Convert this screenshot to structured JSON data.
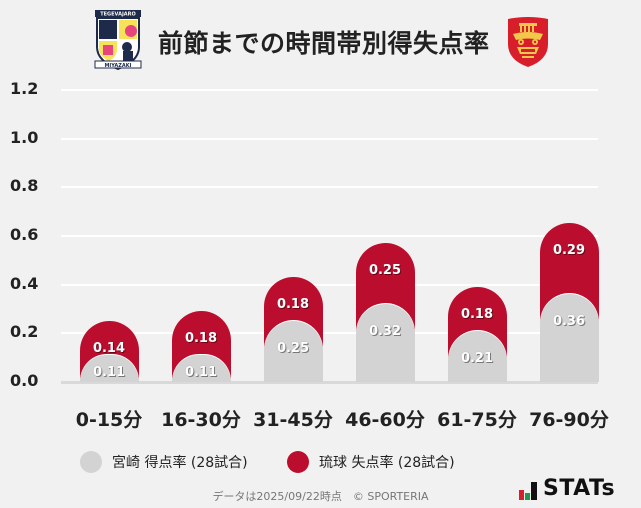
{
  "header": {
    "title": "前節までの時間帯別得失点率",
    "left_logo": "miyazaki-crest-icon",
    "right_logo": "ryukyu-shisa-crest-icon",
    "left_logo_text_top": "TEGEVAJARO",
    "left_logo_text_bottom": "MIYAZAKI"
  },
  "colors": {
    "background": "#f1f1f1",
    "miyazaki": "#d3d3d3",
    "ryukyu": "#bb0e2f",
    "grid": "#ffffff"
  },
  "chart_data": {
    "type": "bar",
    "stacked": true,
    "title": "前節までの時間帯別得失点率",
    "xlabel": "",
    "ylabel": "",
    "ylim": [
      0,
      1.2
    ],
    "yticks": [
      "1.2",
      "1.0",
      "0.8",
      "0.6",
      "0.4",
      "0.2",
      "0.0"
    ],
    "grid": true,
    "legend_position": "bottom",
    "categories": [
      "0-15分",
      "16-30分",
      "31-45分",
      "46-60分",
      "61-75分",
      "76-90分"
    ],
    "series": [
      {
        "name": "宮崎 得点率 (28試合)",
        "color": "#d3d3d3",
        "values": [
          0.11,
          0.11,
          0.25,
          0.32,
          0.21,
          0.36
        ],
        "labels": [
          "0.11",
          "0.11",
          "0.25",
          "0.32",
          "0.21",
          "0.36"
        ]
      },
      {
        "name": "琉球 失点率 (28試合)",
        "color": "#bb0e2f",
        "values": [
          0.14,
          0.18,
          0.18,
          0.25,
          0.18,
          0.29
        ],
        "labels": [
          "0.14",
          "0.18",
          "0.18",
          "0.25",
          "0.18",
          "0.29"
        ]
      }
    ]
  },
  "legend": {
    "items": [
      {
        "label": "宮崎 得点率 (28試合)",
        "color": "#d3d3d3"
      },
      {
        "label": "琉球 失点率 (28試合)",
        "color": "#bb0e2f"
      }
    ]
  },
  "footer": {
    "note": "データは2025/09/22時点　© SPORTERIA"
  },
  "brand": {
    "label": "STATs"
  }
}
